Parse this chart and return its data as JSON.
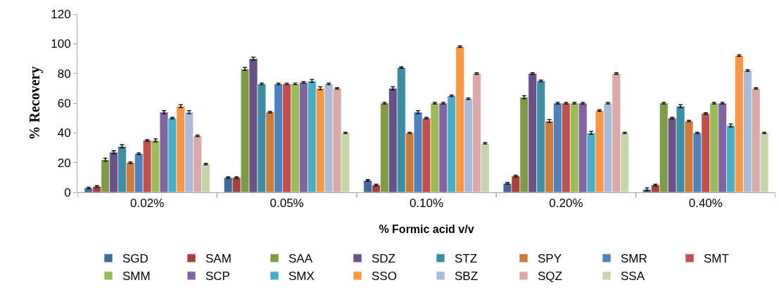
{
  "chart_data": {
    "type": "bar",
    "xlabel": "% Formic acid v/v",
    "ylabel": "% Recovery",
    "categories": [
      "0.02%",
      "0.05%",
      "0.10%",
      "0.20%",
      "0.40%"
    ],
    "ylim": [
      0,
      120
    ],
    "yticks": [
      0,
      20,
      40,
      60,
      80,
      100,
      120
    ],
    "grid": false,
    "legend": "bottom",
    "series": [
      {
        "name": "SGD",
        "color": "#41699b",
        "values": [
          3,
          10,
          8,
          6,
          2
        ],
        "errors": [
          0.5,
          0.5,
          0.5,
          0.5,
          1
        ]
      },
      {
        "name": "SAM",
        "color": "#a4403d",
        "values": [
          4,
          10,
          5,
          11,
          5
        ],
        "errors": [
          0.5,
          0.5,
          0.5,
          0.5,
          0.5
        ]
      },
      {
        "name": "SAA",
        "color": "#7f9a48",
        "values": [
          22,
          83,
          60,
          64,
          60
        ],
        "errors": [
          1,
          1,
          0.5,
          1,
          0.5
        ]
      },
      {
        "name": "SDZ",
        "color": "#69528a",
        "values": [
          27,
          90,
          70,
          80,
          50
        ],
        "errors": [
          1,
          1,
          1,
          0.5,
          0.5
        ]
      },
      {
        "name": "STZ",
        "color": "#3d8da3",
        "values": [
          31,
          73,
          84,
          75,
          58
        ],
        "errors": [
          1,
          0.5,
          0.5,
          0.5,
          1
        ]
      },
      {
        "name": "SPY",
        "color": "#cc7b38",
        "values": [
          20,
          54,
          40,
          48,
          48
        ],
        "errors": [
          0.5,
          0.5,
          0.5,
          1,
          0.5
        ]
      },
      {
        "name": "SMR",
        "color": "#4f81bd",
        "values": [
          26,
          73,
          54,
          60,
          40
        ],
        "errors": [
          0.5,
          0.5,
          1,
          0.5,
          0.5
        ]
      },
      {
        "name": "SMT",
        "color": "#c0504d",
        "values": [
          35,
          73,
          50,
          60,
          53
        ],
        "errors": [
          0.5,
          0.5,
          0.5,
          0.5,
          0.5
        ]
      },
      {
        "name": "SMM",
        "color": "#9bbb59",
        "values": [
          35,
          73,
          60,
          60,
          60
        ],
        "errors": [
          1,
          0.5,
          0.5,
          0.5,
          0.5
        ]
      },
      {
        "name": "SCP",
        "color": "#8064a2",
        "values": [
          54,
          74,
          60,
          60,
          60
        ],
        "errors": [
          1,
          0.5,
          0.5,
          0.5,
          0.5
        ]
      },
      {
        "name": "SMX",
        "color": "#4bacc6",
        "values": [
          50,
          75,
          65,
          40,
          45
        ],
        "errors": [
          0.5,
          1,
          0.5,
          1,
          1
        ]
      },
      {
        "name": "SSO",
        "color": "#f79646",
        "values": [
          58,
          70,
          98,
          55,
          92
        ],
        "errors": [
          1,
          1,
          0.5,
          0.5,
          0.5
        ]
      },
      {
        "name": "SBZ",
        "color": "#aabad7",
        "values": [
          54,
          73,
          63,
          60,
          82
        ],
        "errors": [
          1,
          0.5,
          0.5,
          0.5,
          0.5
        ]
      },
      {
        "name": "SQZ",
        "color": "#d9aaa9",
        "values": [
          38,
          70,
          80,
          80,
          70
        ],
        "errors": [
          0.5,
          0.5,
          0.5,
          0.5,
          0.5
        ]
      },
      {
        "name": "SSA",
        "color": "#c6d6ac",
        "values": [
          19,
          40,
          33,
          40,
          40
        ],
        "errors": [
          0.5,
          0.5,
          0.5,
          0.5,
          0.5
        ]
      }
    ]
  }
}
